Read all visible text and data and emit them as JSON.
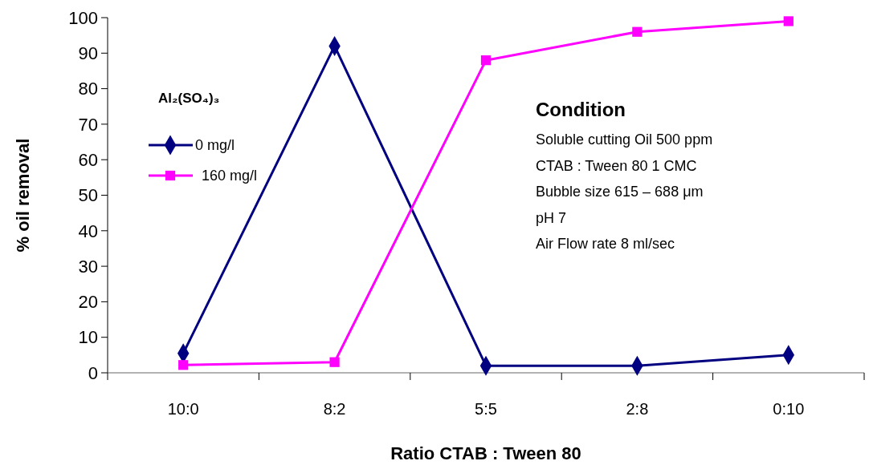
{
  "chart_data": {
    "type": "line",
    "xlabel": "Ratio CTAB : Tween 80",
    "ylabel": "% oil removal",
    "legend_title": "Al₂(SO₄)₃",
    "categories": [
      "10:0",
      "8:2",
      "5:5",
      "2:8",
      "0:10"
    ],
    "series": [
      {
        "name": "0 mg/l",
        "color": "#000080",
        "marker": "diamond",
        "values": [
          5.5,
          92,
          2,
          2,
          5
        ]
      },
      {
        "name": "160 mg/l",
        "color": "#ff00ff",
        "marker": "square",
        "values": [
          2.2,
          3,
          88,
          96,
          99
        ]
      }
    ],
    "ylim": [
      0,
      100
    ],
    "yticks": [
      0,
      10,
      20,
      30,
      40,
      50,
      60,
      70,
      80,
      90,
      100
    ],
    "grid": false,
    "legend": "top left",
    "line_style": "solid",
    "annotations": [
      "Condition",
      "Soluble cutting Oil 500 ppm",
      "CTAB : Tween 80 1 CMC",
      "Bubble size 615 – 688 μm",
      "pH 7",
      "Air Flow rate 8 ml/sec"
    ]
  }
}
